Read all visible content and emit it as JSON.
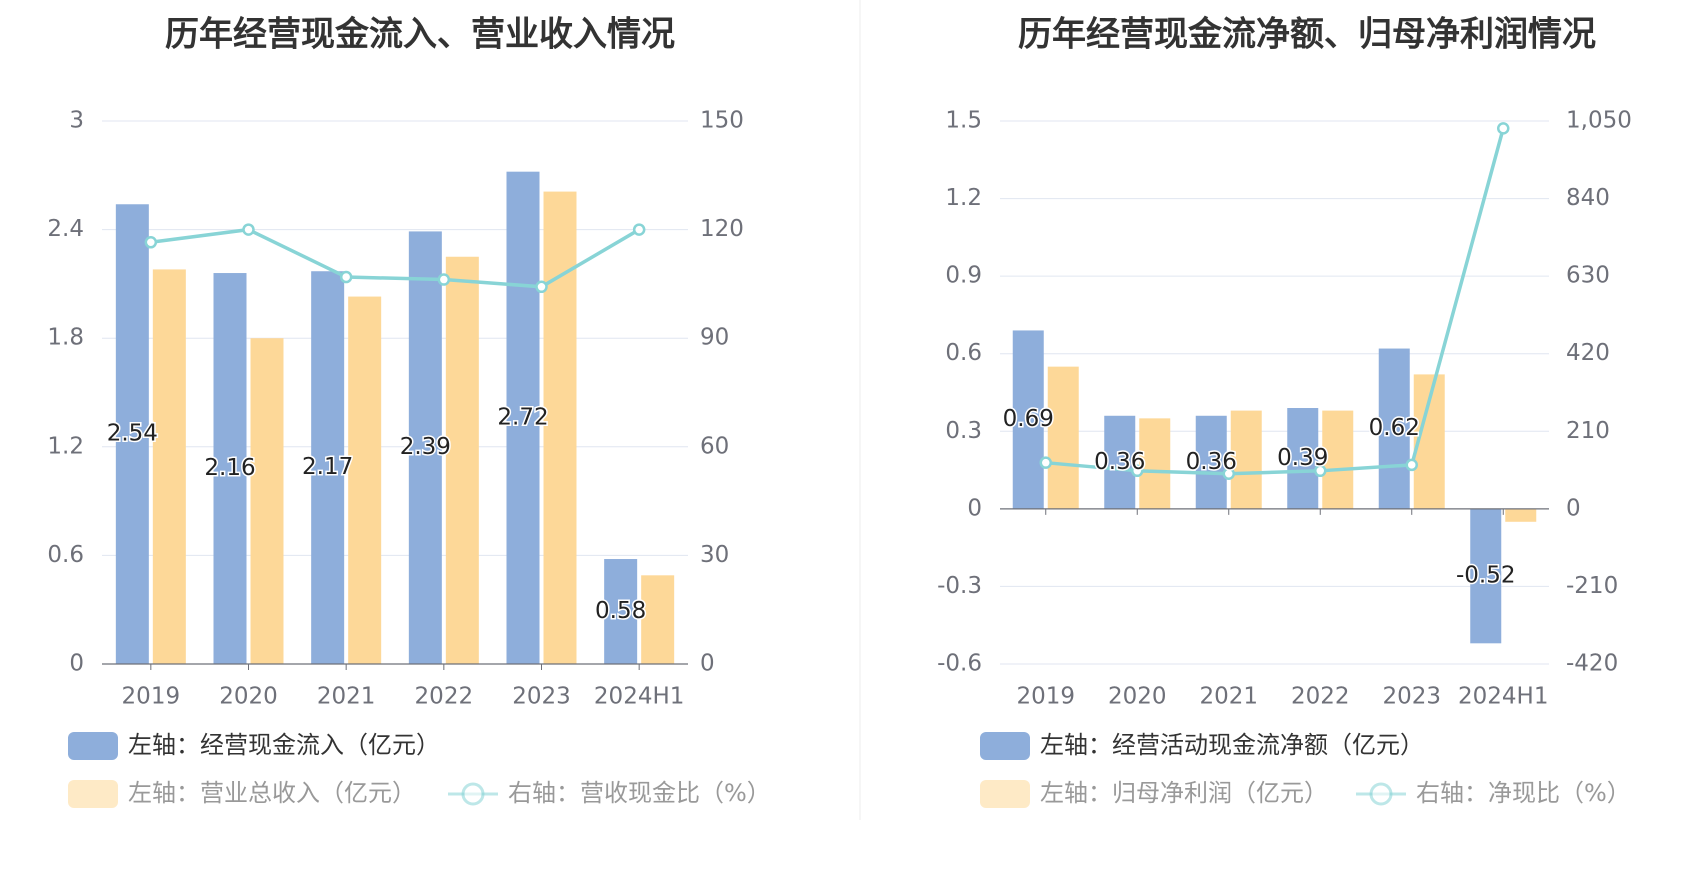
{
  "chart_data": [
    {
      "type": "bar",
      "title": "历年经营现金流入、营业收入情况",
      "categories": [
        "2019",
        "2020",
        "2021",
        "2022",
        "2023",
        "2024H1"
      ],
      "left_axis": {
        "ticks": [
          "0",
          "0.6",
          "1.2",
          "1.8",
          "2.4",
          "3"
        ],
        "ylim": [
          0,
          3
        ]
      },
      "right_axis": {
        "ticks": [
          "0",
          "30",
          "60",
          "90",
          "120",
          "150"
        ],
        "ylim": [
          0,
          150
        ]
      },
      "series": [
        {
          "name": "左轴：经营现金流入（亿元）",
          "type": "bar",
          "axis": "left",
          "color": "#8eaedb",
          "values": [
            2.54,
            2.16,
            2.17,
            2.39,
            2.72,
            0.58
          ],
          "labels": [
            "2.54",
            "2.16",
            "2.17",
            "2.39",
            "2.72",
            "0.58"
          ]
        },
        {
          "name": "左轴：营业总收入（亿元）",
          "type": "bar",
          "axis": "left",
          "color": "#fdd898",
          "values": [
            2.18,
            1.8,
            2.03,
            2.25,
            2.61,
            0.49
          ]
        },
        {
          "name": "右轴：营收现金比（%）",
          "type": "line",
          "axis": "right",
          "color": "#88d4d6",
          "values": [
            116.5,
            120.0,
            106.9,
            106.2,
            104.2,
            120.0
          ]
        }
      ],
      "grid": true,
      "legend_position": "bottom"
    },
    {
      "type": "bar",
      "title": "历年经营现金流净额、归母净利润情况",
      "categories": [
        "2019",
        "2020",
        "2021",
        "2022",
        "2023",
        "2024H1"
      ],
      "left_axis": {
        "ticks": [
          "-0.6",
          "-0.3",
          "0",
          "0.3",
          "0.6",
          "0.9",
          "1.2",
          "1.5"
        ],
        "ylim": [
          -0.6,
          1.5
        ]
      },
      "right_axis": {
        "ticks": [
          "-420",
          "-210",
          "0",
          "210",
          "420",
          "630",
          "840",
          "1,050"
        ],
        "ylim": [
          -420,
          1050
        ]
      },
      "series": [
        {
          "name": "左轴：经营活动现金流净额（亿元）",
          "type": "bar",
          "axis": "left",
          "color": "#8eaedb",
          "values": [
            0.69,
            0.36,
            0.36,
            0.39,
            0.62,
            -0.52
          ],
          "labels": [
            "0.69",
            "0.36",
            "0.36",
            "0.39",
            "0.62",
            "-0.52"
          ]
        },
        {
          "name": "左轴：归母净利润（亿元）",
          "type": "bar",
          "axis": "left",
          "color": "#fdd898",
          "values": [
            0.55,
            0.35,
            0.38,
            0.38,
            0.52,
            -0.05
          ]
        },
        {
          "name": "右轴：净现比（%）",
          "type": "line",
          "axis": "right",
          "color": "#88d4d6",
          "values": [
            125,
            103,
            95,
            103,
            119,
            1030
          ]
        }
      ],
      "grid": true,
      "legend_position": "bottom"
    }
  ]
}
